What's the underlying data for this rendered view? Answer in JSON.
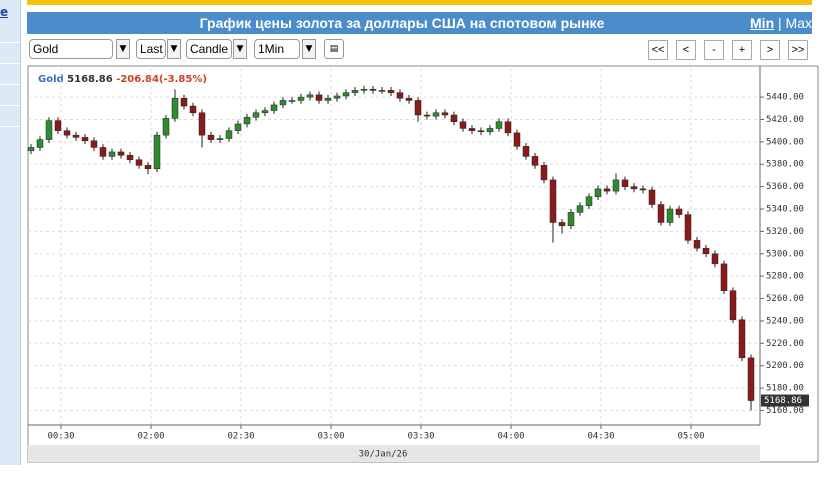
{
  "ui": {
    "sidebar_link": "e",
    "min_link": "Min",
    "max_link": "Max",
    "selects": [
      "Gold",
      "Last",
      "Candle",
      "1Min"
    ],
    "nav_buttons": [
      "<<",
      "<",
      "-",
      "+",
      ">",
      ">>"
    ]
  },
  "chart_data": {
    "type": "candlestick",
    "title": "График цены золота за доллары США на спотовом рынке",
    "x_date_label": "30/Jan/26",
    "change": "-206.84(-3.85%)",
    "up_color": "#2e8b2e",
    "down_color": "#8b1a1a",
    "grid": true,
    "xlim": [
      -11,
      233
    ],
    "xticks": [
      {
        "value": 0,
        "label": "00:30"
      },
      {
        "value": 30,
        "label": "02:00"
      },
      {
        "value": 60,
        "label": "02:30"
      },
      {
        "value": 90,
        "label": "03:00"
      },
      {
        "value": 120,
        "label": "03:30"
      },
      {
        "value": 150,
        "label": "04:00"
      },
      {
        "value": 180,
        "label": "04:30"
      },
      {
        "value": 210,
        "label": "05:00"
      }
    ],
    "ylim": [
      5147,
      5466
    ],
    "yticks": [
      {
        "value": 5160,
        "label": "5160.00"
      },
      {
        "value": 5180,
        "label": "5180.00"
      },
      {
        "value": 5200,
        "label": "5200.00"
      },
      {
        "value": 5220,
        "label": "5220.00"
      },
      {
        "value": 5240,
        "label": "5240.00"
      },
      {
        "value": 5260,
        "label": "5260.00"
      },
      {
        "value": 5280,
        "label": "5280.00"
      },
      {
        "value": 5300,
        "label": "5300.00"
      },
      {
        "value": 5320,
        "label": "5320.00"
      },
      {
        "value": 5340,
        "label": "5340.00"
      },
      {
        "value": 5360,
        "label": "5360.00"
      },
      {
        "value": 5380,
        "label": "5380.00"
      },
      {
        "value": 5400,
        "label": "5400.00"
      },
      {
        "value": 5420,
        "label": "5420.00"
      },
      {
        "value": 5440,
        "label": "5440.00"
      }
    ],
    "x": [
      -10,
      -7,
      -4,
      -1,
      2,
      5,
      8,
      11,
      14,
      17,
      20,
      23,
      26,
      29,
      32,
      35,
      38,
      41,
      44,
      47,
      50,
      53,
      56,
      59,
      62,
      65,
      68,
      71,
      74,
      77,
      80,
      83,
      86,
      89,
      92,
      95,
      98,
      101,
      104,
      107,
      110,
      113,
      116,
      119,
      122,
      125,
      128,
      131,
      134,
      137,
      140,
      143,
      146,
      149,
      152,
      155,
      158,
      161,
      164,
      167,
      170,
      173,
      176,
      179,
      182,
      185,
      188,
      191,
      194,
      197,
      200,
      203,
      206,
      209,
      212,
      215,
      218,
      221,
      224,
      227,
      230
    ],
    "series": [
      {
        "name": "Gold",
        "open": [
          5392,
          5395,
          5402,
          5419,
          5410,
          5406,
          5404,
          5401,
          5395,
          5387,
          5391,
          5388,
          5384,
          5379,
          5376,
          5406,
          5421,
          5439,
          5432,
          5426,
          5406,
          5402,
          5403,
          5410,
          5416,
          5422,
          5426,
          5428,
          5433,
          5437,
          5437,
          5440,
          5442,
          5437,
          5439,
          5441,
          5444,
          5446,
          5447,
          5446,
          5446,
          5444,
          5439,
          5437,
          5424,
          5423,
          5426,
          5424,
          5418,
          5412,
          5410,
          5409,
          5412,
          5418,
          5408,
          5396,
          5387,
          5379,
          5366,
          5328,
          5325,
          5337,
          5343,
          5351,
          5358,
          5356,
          5366,
          5360,
          5358,
          5357,
          5344,
          5328,
          5340,
          5335,
          5312,
          5305,
          5300,
          5291,
          5267,
          5241,
          5207
        ],
        "high": [
          5398,
          5405,
          5422,
          5422,
          5413,
          5409,
          5407,
          5404,
          5398,
          5394,
          5394,
          5391,
          5387,
          5382,
          5409,
          5424,
          5447,
          5442,
          5435,
          5429,
          5409,
          5406,
          5413,
          5419,
          5425,
          5429,
          5431,
          5436,
          5440,
          5440,
          5443,
          5445,
          5445,
          5442,
          5444,
          5447,
          5449,
          5450,
          5450,
          5449,
          5449,
          5447,
          5442,
          5440,
          5427,
          5429,
          5429,
          5427,
          5421,
          5415,
          5413,
          5415,
          5421,
          5421,
          5411,
          5399,
          5390,
          5382,
          5369,
          5331,
          5340,
          5346,
          5354,
          5361,
          5361,
          5372,
          5369,
          5363,
          5361,
          5360,
          5347,
          5343,
          5343,
          5338,
          5315,
          5308,
          5303,
          5294,
          5270,
          5244,
          5210
        ],
        "low": [
          5389,
          5392,
          5399,
          5407,
          5403,
          5401,
          5398,
          5392,
          5384,
          5384,
          5385,
          5381,
          5376,
          5371,
          5373,
          5403,
          5418,
          5429,
          5423,
          5395,
          5399,
          5399,
          5400,
          5407,
          5413,
          5419,
          5423,
          5425,
          5430,
          5434,
          5434,
          5437,
          5434,
          5434,
          5436,
          5438,
          5441,
          5443,
          5443,
          5443,
          5441,
          5436,
          5434,
          5418,
          5420,
          5420,
          5421,
          5415,
          5409,
          5407,
          5406,
          5406,
          5409,
          5405,
          5393,
          5384,
          5376,
          5363,
          5310,
          5318,
          5322,
          5334,
          5340,
          5348,
          5353,
          5353,
          5357,
          5355,
          5354,
          5341,
          5325,
          5325,
          5332,
          5309,
          5302,
          5297,
          5288,
          5264,
          5238,
          5204,
          5160
        ],
        "close": [
          5395,
          5402,
          5419,
          5410,
          5406,
          5404,
          5401,
          5395,
          5387,
          5391,
          5388,
          5384,
          5379,
          5376,
          5406,
          5421,
          5439,
          5432,
          5426,
          5406,
          5402,
          5403,
          5410,
          5416,
          5422,
          5426,
          5428,
          5433,
          5437,
          5437,
          5440,
          5442,
          5437,
          5439,
          5441,
          5444,
          5446,
          5447,
          5446,
          5446,
          5444,
          5439,
          5437,
          5424,
          5423,
          5426,
          5424,
          5418,
          5412,
          5410,
          5409,
          5412,
          5418,
          5408,
          5396,
          5387,
          5379,
          5366,
          5328,
          5325,
          5337,
          5343,
          5351,
          5358,
          5356,
          5366,
          5360,
          5358,
          5357,
          5344,
          5328,
          5340,
          5335,
          5312,
          5305,
          5300,
          5291,
          5267,
          5241,
          5207,
          5168.86
        ]
      }
    ]
  }
}
